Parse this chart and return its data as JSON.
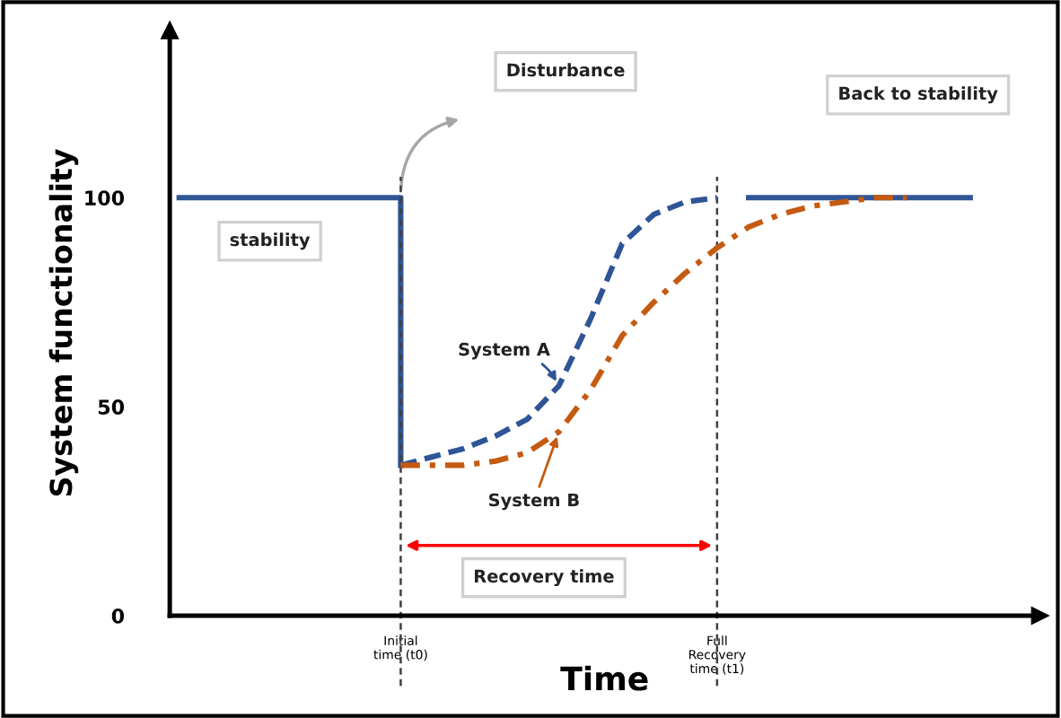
{
  "chart_data": {
    "type": "line",
    "xlabel": "Time",
    "ylabel": "System functionality",
    "categories": [
      null,
      null,
      null,
      null,
      null,
      null,
      null,
      "Initial\ntime (t0)",
      null,
      null,
      null,
      null,
      null,
      null,
      null,
      null,
      null,
      "Full\nRecovery\ntime (t1)",
      null,
      null,
      null,
      null,
      null,
      null,
      null,
      null
    ],
    "ylim": [
      0,
      140
    ],
    "yticks": [
      0,
      50,
      100
    ],
    "grid": "x",
    "legend": false,
    "series": [
      {
        "type": "step",
        "color": "#2f5597",
        "line_style": "solid",
        "values": [
          100,
          100,
          100,
          100,
          100,
          100,
          100,
          36,
          null,
          null,
          null,
          null,
          null,
          null,
          null,
          null,
          null,
          null,
          null,
          null,
          null,
          null,
          null,
          null,
          null,
          null
        ]
      },
      {
        "name": "System A",
        "color": "#2f5597",
        "line_style": "dashed",
        "values": [
          null,
          null,
          null,
          null,
          null,
          null,
          null,
          36,
          38,
          40,
          43,
          47,
          55,
          71,
          89,
          96,
          99,
          100,
          null,
          null,
          null,
          null,
          null,
          null,
          null,
          null
        ]
      },
      {
        "name": "System B",
        "color": "#c55a11",
        "line_style": "dashdot",
        "values": [
          null,
          null,
          null,
          null,
          null,
          null,
          null,
          36,
          36,
          36,
          37,
          39,
          44,
          54,
          67,
          75,
          82,
          88,
          93,
          96,
          98,
          99,
          100,
          100,
          null,
          null
        ]
      },
      {
        "color": "#2f5597",
        "line_style": "solid",
        "values": [
          null,
          null,
          null,
          null,
          null,
          null,
          null,
          null,
          null,
          null,
          null,
          null,
          null,
          null,
          null,
          null,
          null,
          null,
          100,
          100,
          100,
          100,
          100,
          100,
          100,
          100
        ]
      }
    ],
    "annotations": [
      "Disturbance",
      "stability",
      "Back to stability",
      "Recovery time"
    ]
  }
}
